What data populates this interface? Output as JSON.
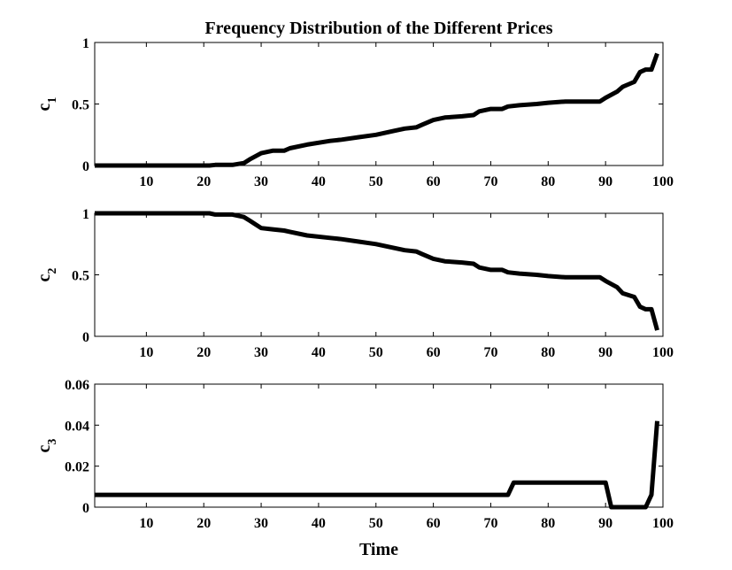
{
  "title": "Frequency Distribution of the Different Prices",
  "xlabel": "Time",
  "chart_data": [
    {
      "type": "line",
      "ylabel": "c",
      "ylabel_sub": "1",
      "xlim": [
        1,
        100
      ],
      "ylim": [
        0,
        1
      ],
      "xticks": [
        10,
        20,
        30,
        40,
        50,
        60,
        70,
        80,
        90,
        100
      ],
      "yticks": [
        0,
        0.5,
        1
      ],
      "ytick_labels": [
        "0",
        "0.5",
        "1"
      ],
      "series": [
        {
          "x": [
            1,
            21,
            22,
            25,
            27,
            28,
            30,
            32,
            34,
            35,
            38,
            42,
            44,
            47,
            50,
            53,
            55,
            57,
            58,
            60,
            62,
            65,
            67,
            68,
            70,
            72,
            73,
            75,
            78,
            80,
            83,
            85,
            88,
            89,
            90,
            92,
            93,
            95,
            96,
            97,
            98,
            99
          ],
          "values": [
            0,
            0,
            0.005,
            0.005,
            0.02,
            0.05,
            0.1,
            0.12,
            0.12,
            0.14,
            0.17,
            0.2,
            0.21,
            0.23,
            0.25,
            0.28,
            0.3,
            0.31,
            0.33,
            0.37,
            0.39,
            0.4,
            0.41,
            0.44,
            0.46,
            0.46,
            0.48,
            0.49,
            0.5,
            0.51,
            0.52,
            0.52,
            0.52,
            0.52,
            0.55,
            0.6,
            0.64,
            0.68,
            0.76,
            0.78,
            0.78,
            0.91
          ]
        }
      ]
    },
    {
      "type": "line",
      "ylabel": "c",
      "ylabel_sub": "2",
      "xlim": [
        1,
        100
      ],
      "ylim": [
        0,
        1
      ],
      "xticks": [
        10,
        20,
        30,
        40,
        50,
        60,
        70,
        80,
        90,
        100
      ],
      "yticks": [
        0,
        0.5,
        1
      ],
      "ytick_labels": [
        "0",
        "0.5",
        "1"
      ],
      "series": [
        {
          "x": [
            1,
            21,
            22,
            25,
            27,
            28,
            30,
            32,
            34,
            35,
            38,
            42,
            44,
            47,
            50,
            53,
            55,
            57,
            58,
            60,
            62,
            65,
            67,
            68,
            70,
            72,
            73,
            75,
            78,
            80,
            83,
            85,
            88,
            89,
            90,
            92,
            93,
            95,
            96,
            97,
            98,
            99
          ],
          "values": [
            1,
            1,
            0.99,
            0.99,
            0.97,
            0.94,
            0.88,
            0.87,
            0.86,
            0.85,
            0.82,
            0.8,
            0.79,
            0.77,
            0.75,
            0.72,
            0.7,
            0.69,
            0.67,
            0.63,
            0.61,
            0.6,
            0.59,
            0.56,
            0.54,
            0.54,
            0.52,
            0.51,
            0.5,
            0.49,
            0.48,
            0.48,
            0.48,
            0.48,
            0.45,
            0.4,
            0.35,
            0.32,
            0.24,
            0.22,
            0.22,
            0.05
          ]
        }
      ]
    },
    {
      "type": "line",
      "ylabel": "c",
      "ylabel_sub": "3",
      "xlim": [
        1,
        100
      ],
      "ylim": [
        0,
        0.06
      ],
      "xticks": [
        10,
        20,
        30,
        40,
        50,
        60,
        70,
        80,
        90,
        100
      ],
      "yticks": [
        0,
        0.02,
        0.04,
        0.06
      ],
      "ytick_labels": [
        "0",
        "0.02",
        "0.04",
        "0.06"
      ],
      "series": [
        {
          "x": [
            1,
            73,
            74,
            90,
            91,
            97,
            98,
            99
          ],
          "values": [
            0.006,
            0.006,
            0.012,
            0.012,
            0,
            0,
            0.006,
            0.042
          ]
        }
      ]
    }
  ]
}
